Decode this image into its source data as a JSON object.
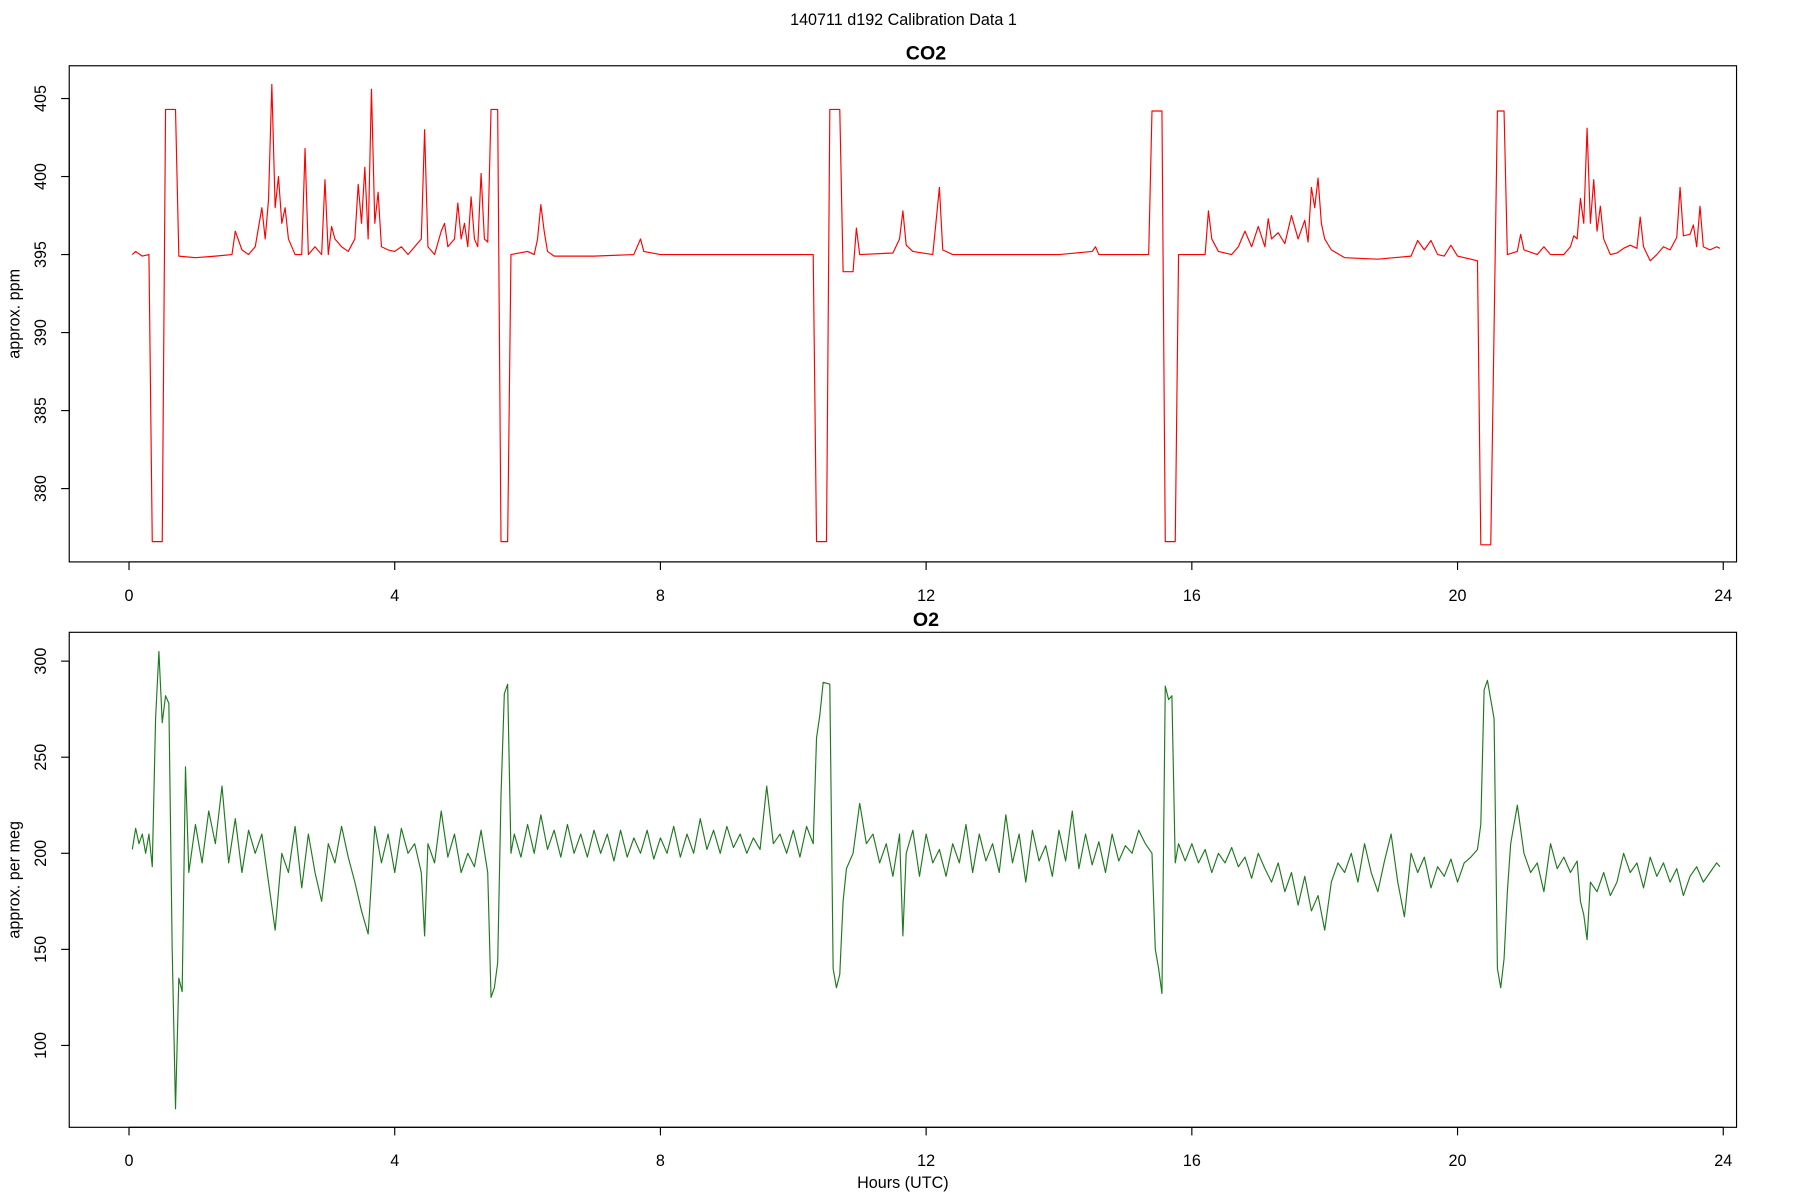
{
  "title": "140711   d192   Calibration Data 1",
  "chart_data": [
    {
      "type": "line",
      "title": "CO2",
      "ylabel": "approx. ppm",
      "color": "#ff0000",
      "xlim": [
        -0.9,
        24.2
      ],
      "xticks": [
        0,
        4,
        8,
        12,
        16,
        20,
        24
      ],
      "ylim": [
        375.3,
        407.1
      ],
      "yticks": [
        380,
        385,
        390,
        395,
        400,
        405
      ],
      "x": [
        0.05,
        0.1,
        0.2,
        0.3,
        0.35,
        0.5,
        0.55,
        0.7,
        0.75,
        1.0,
        1.3,
        1.55,
        1.6,
        1.7,
        1.8,
        1.9,
        2.0,
        2.05,
        2.1,
        2.15,
        2.2,
        2.25,
        2.3,
        2.35,
        2.4,
        2.5,
        2.6,
        2.65,
        2.7,
        2.8,
        2.9,
        2.95,
        3.0,
        3.05,
        3.1,
        3.2,
        3.3,
        3.4,
        3.45,
        3.5,
        3.55,
        3.6,
        3.65,
        3.7,
        3.75,
        3.8,
        3.9,
        4.0,
        4.1,
        4.2,
        4.3,
        4.4,
        4.45,
        4.5,
        4.6,
        4.7,
        4.75,
        4.8,
        4.9,
        4.95,
        5.0,
        5.05,
        5.1,
        5.15,
        5.2,
        5.25,
        5.3,
        5.35,
        5.4,
        5.45,
        5.55,
        5.6,
        5.7,
        5.75,
        6.0,
        6.1,
        6.15,
        6.2,
        6.25,
        6.3,
        6.4,
        7.0,
        7.6,
        7.7,
        7.75,
        8.0,
        9.0,
        10.3,
        10.35,
        10.5,
        10.55,
        10.7,
        10.75,
        10.9,
        10.95,
        11.0,
        11.5,
        11.6,
        11.65,
        11.7,
        11.8,
        12.1,
        12.2,
        12.25,
        12.4,
        13.0,
        14.0,
        14.5,
        14.55,
        14.6,
        15.35,
        15.4,
        15.55,
        15.6,
        15.75,
        15.8,
        16.2,
        16.25,
        16.3,
        16.4,
        16.6,
        16.7,
        16.8,
        16.9,
        17.0,
        17.1,
        17.15,
        17.2,
        17.3,
        17.4,
        17.5,
        17.6,
        17.7,
        17.75,
        17.8,
        17.85,
        17.9,
        17.95,
        18.0,
        18.1,
        18.3,
        18.8,
        19.3,
        19.4,
        19.5,
        19.6,
        19.7,
        19.8,
        19.9,
        20.0,
        20.2,
        20.3,
        20.35,
        20.5,
        20.6,
        20.7,
        20.75,
        20.9,
        20.95,
        21.0,
        21.2,
        21.3,
        21.4,
        21.6,
        21.7,
        21.75,
        21.8,
        21.85,
        21.9,
        21.95,
        22.0,
        22.05,
        22.1,
        22.15,
        22.2,
        22.3,
        22.4,
        22.5,
        22.6,
        22.7,
        22.75,
        22.8,
        22.9,
        23.0,
        23.1,
        23.2,
        23.3,
        23.35,
        23.4,
        23.5,
        23.55,
        23.6,
        23.65,
        23.7,
        23.8,
        23.9,
        23.95
      ],
      "values": [
        395,
        395.2,
        394.9,
        395,
        376.6,
        376.6,
        404.3,
        404.3,
        394.9,
        394.8,
        394.9,
        395,
        396.5,
        395.3,
        395,
        395.5,
        398,
        396,
        398.5,
        405.9,
        398,
        400,
        397,
        398,
        396,
        395,
        395,
        401.8,
        395,
        395.5,
        395,
        399.8,
        395,
        396.8,
        396,
        395.5,
        395.2,
        396,
        399.5,
        397,
        400.6,
        396,
        405.6,
        397,
        399,
        395.5,
        395.3,
        395.2,
        395.5,
        395,
        395.5,
        396,
        403,
        395.5,
        395,
        396.5,
        397,
        395.5,
        396,
        398.3,
        396,
        397,
        395.5,
        398.7,
        396,
        395.5,
        400.2,
        396,
        395.8,
        404.3,
        404.3,
        376.6,
        376.6,
        395,
        395.2,
        395,
        396,
        398.2,
        396.5,
        395.2,
        394.9,
        394.9,
        395,
        396,
        395.2,
        395,
        395,
        395,
        376.6,
        376.6,
        404.3,
        404.3,
        393.9,
        393.9,
        396.7,
        395,
        395.1,
        396,
        397.8,
        395.6,
        395.2,
        395,
        399.3,
        395.3,
        395,
        395,
        395,
        395.2,
        395.5,
        395,
        395,
        404.2,
        404.2,
        376.6,
        376.6,
        395,
        395,
        397.8,
        396,
        395.2,
        395,
        395.5,
        396.5,
        395.5,
        396.8,
        395.5,
        397.3,
        396,
        396.4,
        395.7,
        397.5,
        396,
        397.2,
        395.8,
        399.3,
        398,
        399.9,
        397,
        396,
        395.3,
        394.8,
        394.7,
        394.9,
        395.9,
        395.3,
        395.9,
        395,
        394.9,
        395.6,
        394.9,
        394.7,
        394.6,
        376.4,
        376.4,
        404.2,
        404.2,
        395,
        395.2,
        396.3,
        395.3,
        395,
        395.5,
        395,
        395,
        395.5,
        396.2,
        396,
        398.6,
        397,
        403.1,
        397,
        399.8,
        396.5,
        398.1,
        396,
        395,
        395.1,
        395.4,
        395.6,
        395.4,
        397.4,
        395.5,
        394.6,
        395,
        395.5,
        395.3,
        396.1,
        399.3,
        396.2,
        396.3,
        396.9,
        395.5,
        398.1,
        395.5,
        395.3,
        395.5,
        395.4
      ]
    },
    {
      "type": "line",
      "title": "O2",
      "ylabel": "approx. per meg",
      "xlabel": "Hours (UTC)",
      "color": "#1e7a1e",
      "xlim": [
        -0.9,
        24.2
      ],
      "xticks": [
        0,
        4,
        8,
        12,
        16,
        20,
        24
      ],
      "ylim": [
        57.4,
        315
      ],
      "yticks": [
        100,
        150,
        200,
        250,
        300
      ],
      "x": [
        0.05,
        0.1,
        0.15,
        0.2,
        0.25,
        0.3,
        0.35,
        0.4,
        0.45,
        0.5,
        0.55,
        0.6,
        0.65,
        0.7,
        0.75,
        0.8,
        0.85,
        0.9,
        1.0,
        1.1,
        1.2,
        1.3,
        1.4,
        1.5,
        1.6,
        1.7,
        1.8,
        1.9,
        2.0,
        2.1,
        2.2,
        2.3,
        2.4,
        2.5,
        2.6,
        2.7,
        2.8,
        2.9,
        3.0,
        3.1,
        3.2,
        3.3,
        3.4,
        3.5,
        3.6,
        3.7,
        3.8,
        3.9,
        4.0,
        4.1,
        4.2,
        4.3,
        4.4,
        4.45,
        4.5,
        4.6,
        4.7,
        4.8,
        4.9,
        5.0,
        5.1,
        5.2,
        5.3,
        5.4,
        5.45,
        5.5,
        5.55,
        5.6,
        5.65,
        5.7,
        5.75,
        5.8,
        5.9,
        6.0,
        6.1,
        6.2,
        6.3,
        6.4,
        6.5,
        6.6,
        6.7,
        6.8,
        6.9,
        7.0,
        7.1,
        7.2,
        7.3,
        7.4,
        7.5,
        7.6,
        7.7,
        7.8,
        7.9,
        8.0,
        8.1,
        8.2,
        8.3,
        8.4,
        8.5,
        8.6,
        8.7,
        8.8,
        8.9,
        9.0,
        9.1,
        9.2,
        9.3,
        9.4,
        9.5,
        9.6,
        9.7,
        9.8,
        9.9,
        10.0,
        10.1,
        10.2,
        10.3,
        10.35,
        10.4,
        10.45,
        10.55,
        10.6,
        10.65,
        10.7,
        10.75,
        10.8,
        10.9,
        11.0,
        11.1,
        11.2,
        11.3,
        11.4,
        11.5,
        11.6,
        11.65,
        11.7,
        11.8,
        11.9,
        12.0,
        12.1,
        12.2,
        12.3,
        12.4,
        12.5,
        12.6,
        12.7,
        12.8,
        12.9,
        13.0,
        13.1,
        13.2,
        13.3,
        13.4,
        13.5,
        13.6,
        13.7,
        13.8,
        13.9,
        14.0,
        14.1,
        14.2,
        14.3,
        14.4,
        14.5,
        14.6,
        14.7,
        14.8,
        14.9,
        15.0,
        15.1,
        15.2,
        15.3,
        15.4,
        15.45,
        15.5,
        15.55,
        15.6,
        15.65,
        15.7,
        15.75,
        15.8,
        15.9,
        16.0,
        16.1,
        16.2,
        16.3,
        16.4,
        16.5,
        16.6,
        16.7,
        16.8,
        16.9,
        17.0,
        17.1,
        17.2,
        17.3,
        17.4,
        17.5,
        17.6,
        17.7,
        17.8,
        17.9,
        18.0,
        18.1,
        18.2,
        18.3,
        18.4,
        18.5,
        18.6,
        18.7,
        18.8,
        18.9,
        19.0,
        19.1,
        19.2,
        19.3,
        19.4,
        19.5,
        19.6,
        19.7,
        19.8,
        19.9,
        20.0,
        20.1,
        20.2,
        20.3,
        20.35,
        20.4,
        20.45,
        20.55,
        20.6,
        20.65,
        20.7,
        20.75,
        20.8,
        20.9,
        21.0,
        21.1,
        21.2,
        21.3,
        21.4,
        21.5,
        21.6,
        21.7,
        21.8,
        21.85,
        21.9,
        21.95,
        22.0,
        22.1,
        22.2,
        22.3,
        22.4,
        22.5,
        22.6,
        22.7,
        22.8,
        22.9,
        23.0,
        23.1,
        23.2,
        23.3,
        23.4,
        23.5,
        23.6,
        23.7,
        23.8,
        23.9,
        23.95
      ],
      "values": [
        202,
        213,
        205,
        210,
        200,
        210,
        193,
        270,
        305,
        268,
        282,
        278,
        150,
        67,
        135,
        128,
        245,
        190,
        215,
        195,
        222,
        205,
        235,
        195,
        218,
        190,
        212,
        200,
        210,
        185,
        160,
        200,
        190,
        214,
        182,
        210,
        190,
        175,
        205,
        195,
        214,
        198,
        185,
        170,
        158,
        214,
        195,
        210,
        190,
        213,
        200,
        205,
        190,
        157,
        205,
        195,
        222,
        198,
        210,
        190,
        200,
        193,
        212,
        190,
        125,
        130,
        143,
        230,
        283,
        288,
        200,
        210,
        198,
        215,
        200,
        220,
        202,
        212,
        198,
        215,
        200,
        210,
        198,
        212,
        200,
        210,
        196,
        212,
        198,
        208,
        200,
        212,
        197,
        208,
        200,
        214,
        198,
        210,
        200,
        218,
        202,
        212,
        200,
        214,
        203,
        210,
        200,
        208,
        202,
        235,
        205,
        210,
        200,
        212,
        198,
        214,
        205,
        260,
        272,
        289,
        288,
        140,
        130,
        137,
        175,
        192,
        200,
        226,
        205,
        210,
        195,
        205,
        188,
        210,
        157,
        200,
        212,
        188,
        210,
        195,
        202,
        188,
        205,
        195,
        215,
        190,
        210,
        196,
        205,
        190,
        220,
        195,
        210,
        185,
        212,
        196,
        204,
        188,
        212,
        196,
        222,
        192,
        210,
        194,
        206,
        190,
        210,
        196,
        204,
        200,
        212,
        205,
        200,
        150,
        140,
        127,
        287,
        280,
        282,
        195,
        205,
        196,
        205,
        195,
        202,
        190,
        200,
        195,
        203,
        193,
        198,
        187,
        200,
        192,
        185,
        195,
        180,
        190,
        173,
        188,
        170,
        178,
        160,
        185,
        195,
        190,
        200,
        185,
        205,
        190,
        180,
        196,
        210,
        185,
        167,
        200,
        190,
        198,
        182,
        193,
        188,
        197,
        185,
        195,
        198,
        202,
        215,
        285,
        290,
        270,
        140,
        130,
        145,
        180,
        205,
        225,
        200,
        190,
        195,
        180,
        205,
        192,
        198,
        190,
        196,
        175,
        168,
        155,
        185,
        180,
        190,
        178,
        185,
        200,
        190,
        195,
        182,
        198,
        188,
        195,
        185,
        192,
        178,
        188,
        193,
        185,
        190,
        195,
        193
      ]
    }
  ]
}
